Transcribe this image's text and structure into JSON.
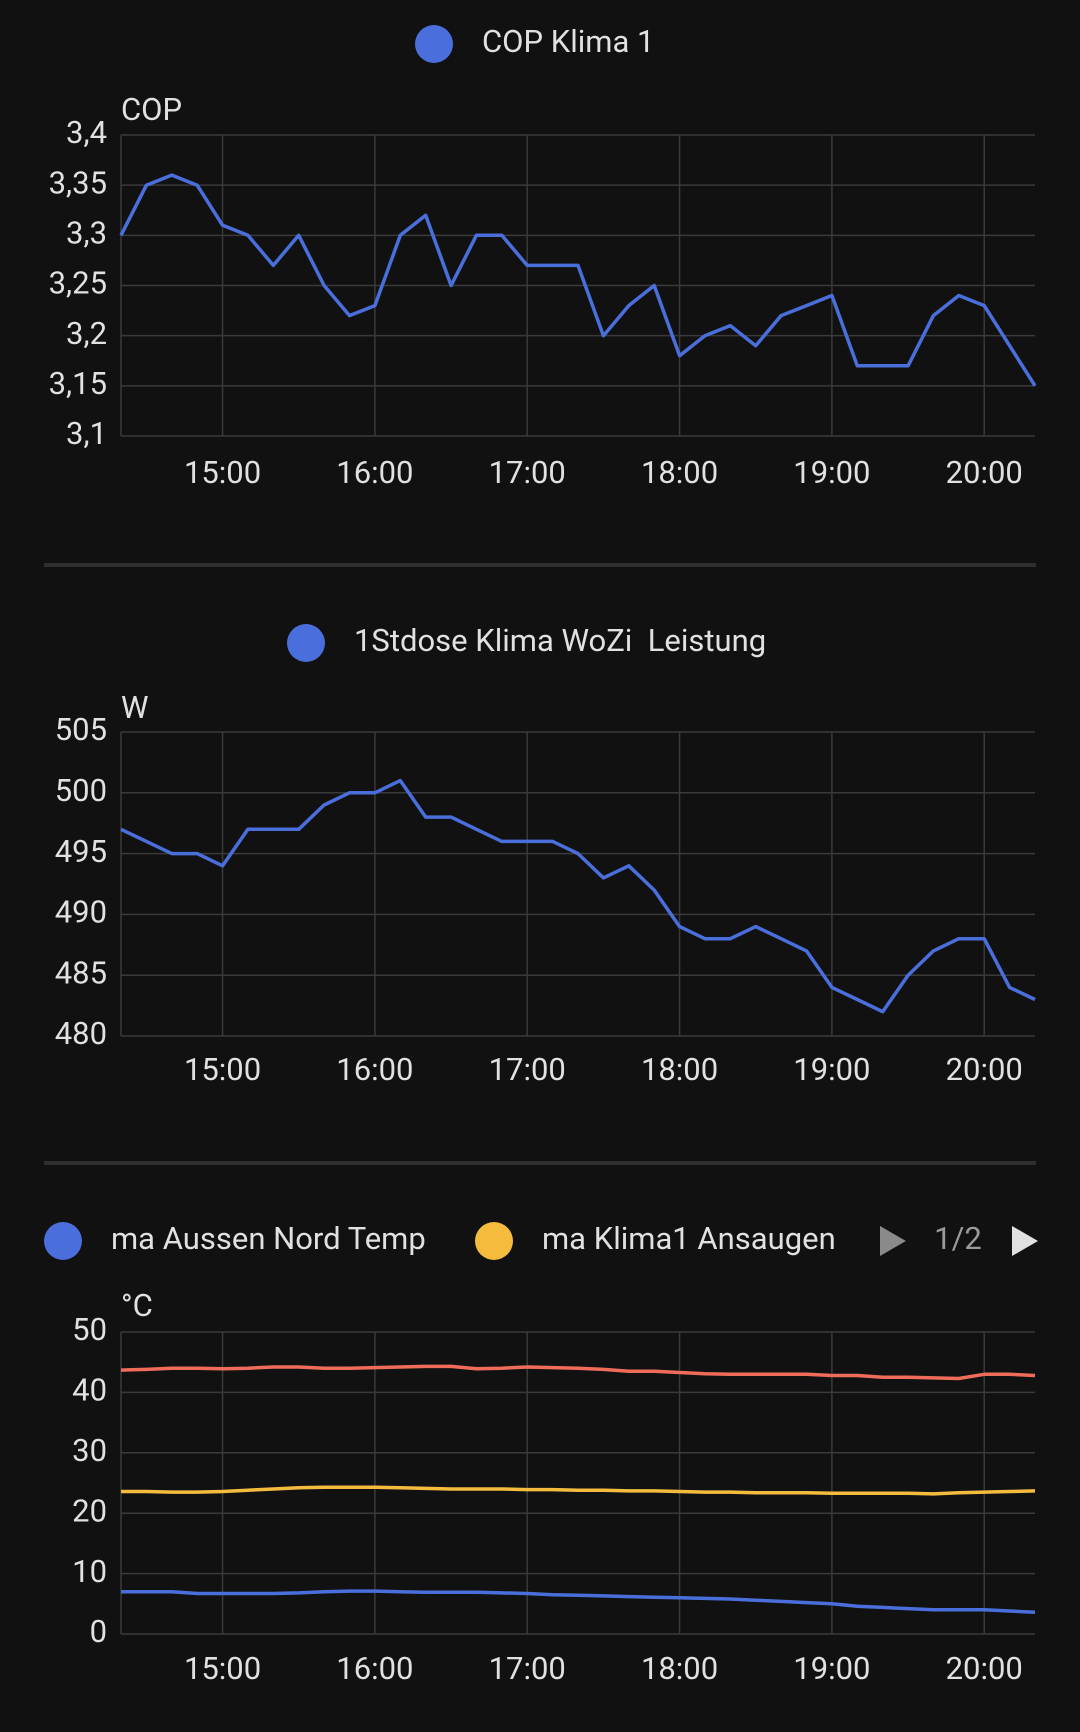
{
  "chart_data": [
    {
      "type": "line",
      "y_label": "COP",
      "x": [
        "14:20",
        "14:30",
        "14:40",
        "14:50",
        "15:00",
        "15:10",
        "15:20",
        "15:30",
        "15:40",
        "15:50",
        "16:00",
        "16:10",
        "16:20",
        "16:30",
        "16:40",
        "16:50",
        "17:00",
        "17:10",
        "17:20",
        "17:30",
        "17:40",
        "17:50",
        "18:00",
        "18:10",
        "18:20",
        "18:30",
        "18:40",
        "18:50",
        "19:00",
        "19:10",
        "19:20",
        "19:30",
        "19:40",
        "19:50",
        "20:00",
        "20:10",
        "20:20"
      ],
      "xlim": [
        "14:20",
        "20:20"
      ],
      "xticks": [
        "15:00",
        "16:00",
        "17:00",
        "18:00",
        "19:00",
        "20:00"
      ],
      "ylim": [
        3.1,
        3.4
      ],
      "yticks": [
        {
          "value": 3.1,
          "label": "3,1"
        },
        {
          "value": 3.15,
          "label": "3,15"
        },
        {
          "value": 3.2,
          "label": "3,2"
        },
        {
          "value": 3.25,
          "label": "3,25"
        },
        {
          "value": 3.3,
          "label": "3,3"
        },
        {
          "value": 3.35,
          "label": "3,35"
        },
        {
          "value": 3.4,
          "label": "3,4"
        }
      ],
      "grid": true,
      "series": [
        {
          "name": "COP Klima 1",
          "color": "#4a6fdc",
          "values": [
            3.3,
            3.35,
            3.36,
            3.35,
            3.31,
            3.3,
            3.27,
            3.3,
            3.25,
            3.22,
            3.23,
            3.3,
            3.32,
            3.25,
            3.3,
            3.3,
            3.27,
            3.27,
            3.27,
            3.2,
            3.23,
            3.25,
            3.18,
            3.2,
            3.21,
            3.19,
            3.22,
            3.23,
            3.24,
            3.17,
            3.17,
            3.17,
            3.22,
            3.24,
            3.23,
            3.19,
            3.15
          ]
        }
      ]
    },
    {
      "type": "line",
      "y_label": "W",
      "x": [
        "14:20",
        "14:30",
        "14:40",
        "14:50",
        "15:00",
        "15:10",
        "15:20",
        "15:30",
        "15:40",
        "15:50",
        "16:00",
        "16:10",
        "16:20",
        "16:30",
        "16:40",
        "16:50",
        "17:00",
        "17:10",
        "17:20",
        "17:30",
        "17:40",
        "17:50",
        "18:00",
        "18:10",
        "18:20",
        "18:30",
        "18:40",
        "18:50",
        "19:00",
        "19:10",
        "19:20",
        "19:30",
        "19:40",
        "19:50",
        "20:00",
        "20:10",
        "20:20"
      ],
      "xlim": [
        "14:20",
        "20:20"
      ],
      "xticks": [
        "15:00",
        "16:00",
        "17:00",
        "18:00",
        "19:00",
        "20:00"
      ],
      "ylim": [
        480,
        505
      ],
      "yticks": [
        480,
        485,
        490,
        495,
        500,
        505
      ],
      "grid": true,
      "series": [
        {
          "name": "1Stdose Klima WoZi  Leistung",
          "color": "#4a6fdc",
          "values": [
            497,
            496,
            495,
            495,
            494,
            497,
            497,
            497,
            499,
            500,
            500,
            501,
            498,
            498,
            497,
            496,
            496,
            496,
            495,
            493,
            494,
            492,
            489,
            488,
            488,
            489,
            488,
            487,
            484,
            483,
            482,
            485,
            487,
            488,
            488,
            484,
            483
          ]
        }
      ]
    },
    {
      "type": "line",
      "y_label": "°C",
      "legend_page": "1/2",
      "x": [
        "14:20",
        "14:30",
        "14:40",
        "14:50",
        "15:00",
        "15:10",
        "15:20",
        "15:30",
        "15:40",
        "15:50",
        "16:00",
        "16:10",
        "16:20",
        "16:30",
        "16:40",
        "16:50",
        "17:00",
        "17:10",
        "17:20",
        "17:30",
        "17:40",
        "17:50",
        "18:00",
        "18:10",
        "18:20",
        "18:30",
        "18:40",
        "18:50",
        "19:00",
        "19:10",
        "19:20",
        "19:30",
        "19:40",
        "19:50",
        "20:00",
        "20:10",
        "20:20"
      ],
      "xlim": [
        "14:20",
        "20:20"
      ],
      "xticks": [
        "15:00",
        "16:00",
        "17:00",
        "18:00",
        "19:00",
        "20:00"
      ],
      "ylim": [
        0,
        50
      ],
      "yticks": [
        0,
        10,
        20,
        30,
        40,
        50
      ],
      "grid": true,
      "series": [
        {
          "name": "ma Aussen Nord Temp",
          "color": "#4a6fdc",
          "values": [
            7,
            7,
            7,
            6.7,
            6.7,
            6.7,
            6.7,
            6.8,
            7,
            7.1,
            7.1,
            7,
            6.9,
            6.9,
            6.9,
            6.8,
            6.7,
            6.5,
            6.4,
            6.3,
            6.2,
            6.1,
            6,
            5.9,
            5.8,
            5.6,
            5.4,
            5.2,
            5,
            4.6,
            4.4,
            4.2,
            4,
            4,
            4,
            3.8,
            3.6
          ]
        },
        {
          "name": "ma Klima1 Ansaugen",
          "color": "#f5bb3d",
          "values": [
            23.6,
            23.6,
            23.5,
            23.5,
            23.6,
            23.8,
            24,
            24.2,
            24.3,
            24.3,
            24.3,
            24.2,
            24.1,
            24,
            24,
            24,
            23.9,
            23.9,
            23.8,
            23.8,
            23.7,
            23.7,
            23.6,
            23.5,
            23.5,
            23.4,
            23.4,
            23.4,
            23.3,
            23.3,
            23.3,
            23.3,
            23.2,
            23.4,
            23.5,
            23.6,
            23.7
          ]
        },
        {
          "color": "#ef6c5a",
          "values": [
            43.7,
            43.8,
            44,
            44,
            43.9,
            44,
            44.2,
            44.2,
            44,
            44,
            44.1,
            44.2,
            44.3,
            44.3,
            43.9,
            44,
            44.2,
            44.1,
            44,
            43.8,
            43.5,
            43.5,
            43.3,
            43.1,
            43,
            43,
            43,
            43,
            42.8,
            42.8,
            42.5,
            42.5,
            42.4,
            42.3,
            43,
            43,
            42.8
          ]
        }
      ]
    }
  ]
}
